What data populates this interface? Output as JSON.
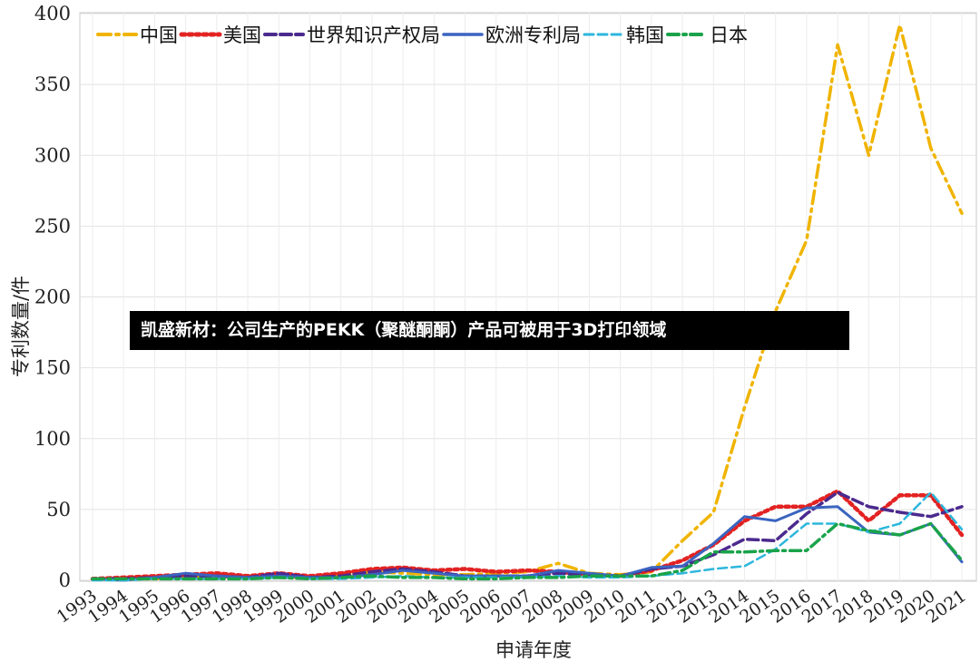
{
  "caption": "凯盛新材：公司生产的PEKK（聚醚酮酮）产品可被用于3D打印领域",
  "chart_data": {
    "type": "line",
    "xlabel": "申请年度",
    "ylabel": "专利数量/件",
    "ylim": [
      0,
      400
    ],
    "yticks": [
      0,
      50,
      100,
      150,
      200,
      250,
      300,
      350,
      400
    ],
    "grid": true,
    "legend_position": "top-left",
    "x": [
      "1993",
      "1994",
      "1995",
      "1996",
      "1997",
      "1998",
      "1999",
      "2000",
      "2001",
      "2002",
      "2003",
      "2004",
      "2005",
      "2006",
      "2007",
      "2008",
      "2009",
      "2010",
      "2011",
      "2012",
      "2013",
      "2014",
      "2015",
      "2016",
      "2017",
      "2018",
      "2019",
      "2020",
      "2021"
    ],
    "series": [
      {
        "name": "中国",
        "color": "#f0b400",
        "dash": "14 6 3 6",
        "width": 3.5,
        "values": [
          1,
          1,
          1,
          2,
          2,
          3,
          2,
          2,
          3,
          6,
          5,
          4,
          4,
          5,
          6,
          12,
          5,
          4,
          6,
          28,
          48,
          122,
          190,
          240,
          378,
          300,
          392,
          305,
          259
        ]
      },
      {
        "name": "美国",
        "color": "#e32222",
        "dash": "4 4",
        "width": 4.5,
        "values": [
          1,
          2,
          3,
          4,
          5,
          3,
          5,
          3,
          5,
          8,
          9,
          7,
          8,
          6,
          7,
          6,
          4,
          3,
          7,
          14,
          25,
          42,
          52,
          52,
          63,
          42,
          60,
          60,
          32
        ]
      },
      {
        "name": "世界知识产权局",
        "color": "#4b2a8e",
        "dash": "12 5",
        "width": 3.5,
        "values": [
          1,
          1,
          2,
          3,
          3,
          2,
          5,
          2,
          3,
          6,
          8,
          6,
          3,
          3,
          3,
          5,
          4,
          3,
          8,
          10,
          18,
          29,
          28,
          47,
          62,
          52,
          48,
          45,
          52
        ]
      },
      {
        "name": "欧洲专利局",
        "color": "#3a64c0",
        "dash": "",
        "width": 3,
        "values": [
          1,
          0,
          2,
          5,
          3,
          2,
          3,
          2,
          2,
          4,
          7,
          5,
          3,
          3,
          3,
          7,
          5,
          3,
          9,
          10,
          26,
          45,
          42,
          51,
          52,
          34,
          32,
          40,
          13
        ]
      },
      {
        "name": "韩国",
        "color": "#2cb6dc",
        "dash": "10 5",
        "width": 2.5,
        "values": [
          0,
          0,
          1,
          1,
          1,
          1,
          2,
          1,
          1,
          2,
          3,
          2,
          2,
          2,
          2,
          3,
          2,
          2,
          3,
          5,
          8,
          10,
          22,
          40,
          40,
          34,
          40,
          62,
          36
        ]
      },
      {
        "name": "日本",
        "color": "#1aa34a",
        "dash": "12 5 3 5",
        "width": 3.5,
        "values": [
          1,
          1,
          1,
          1,
          1,
          1,
          2,
          1,
          2,
          3,
          2,
          2,
          1,
          1,
          2,
          2,
          3,
          3,
          3,
          7,
          20,
          20,
          21,
          21,
          40,
          35,
          32,
          40,
          14
        ]
      }
    ]
  }
}
